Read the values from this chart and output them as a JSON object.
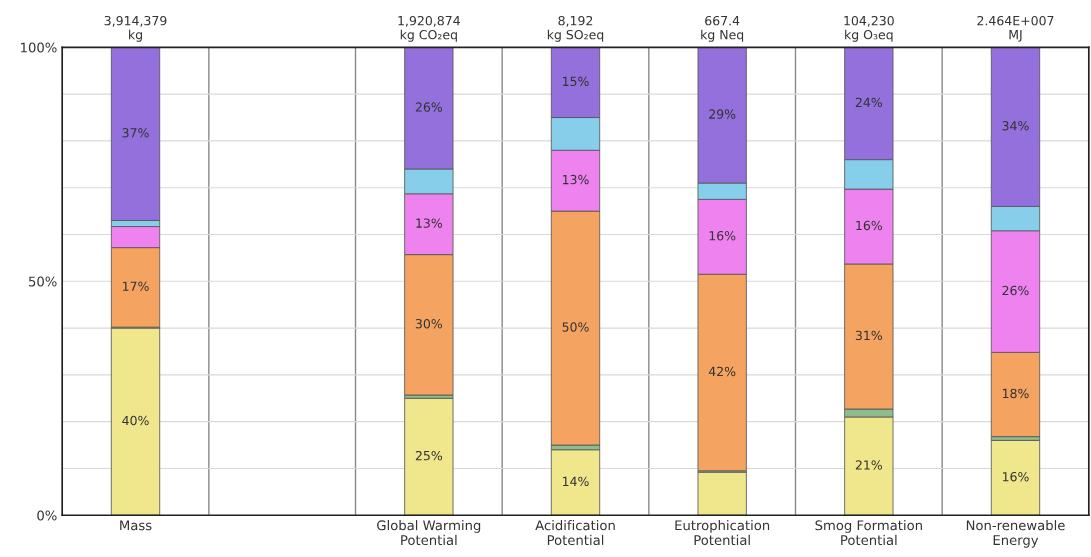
{
  "chart_data": {
    "type": "bar",
    "stacked": true,
    "categories": [
      "Mass",
      null,
      "Global Warming\nPotential",
      "Acidification\nPotential",
      "Eutrophication\nPotential",
      "Smog Formation\nPotential",
      "Non-renewable\nEnergy"
    ],
    "series": [
      {
        "color": "#f0e68c",
        "values": [
          40,
          null,
          25,
          14,
          9.2,
          21,
          16
        ],
        "value_labels": [
          "40%",
          null,
          "25%",
          "14%",
          null,
          "21%",
          "16%"
        ]
      },
      {
        "color": "#8fbc8f",
        "values": [
          0.2,
          null,
          0.7,
          1,
          0.3,
          1.7,
          0.8
        ],
        "value_labels": [
          null,
          null,
          null,
          null,
          null,
          null,
          null
        ]
      },
      {
        "color": "#f4a460",
        "values": [
          17,
          null,
          30,
          50,
          42,
          31,
          18
        ],
        "value_labels": [
          "17%",
          null,
          "30%",
          "50%",
          "42%",
          "31%",
          "18%"
        ]
      },
      {
        "color": "#ee82ee",
        "values": [
          4.5,
          null,
          13,
          13,
          16,
          16,
          26
        ],
        "value_labels": [
          null,
          null,
          "13%",
          "13%",
          "16%",
          "16%",
          "26%"
        ]
      },
      {
        "color": "#87ceeb",
        "values": [
          1.3,
          null,
          5.3,
          7,
          3.5,
          6.3,
          5.2
        ],
        "value_labels": [
          null,
          null,
          null,
          null,
          null,
          null,
          null
        ]
      },
      {
        "color": "#9370db",
        "values": [
          37,
          null,
          26,
          15,
          29,
          24,
          34
        ],
        "value_labels": [
          "37%",
          null,
          "26%",
          "15%",
          "29%",
          "24%",
          "34%"
        ]
      }
    ],
    "annotations": [
      {
        "text": "3,914,379\nkg",
        "x": "Mass",
        "y": 100
      },
      {
        "text": "1,920,874\nkg CO₂eq",
        "x": "Global Warming\nPotential",
        "y": 100
      },
      {
        "text": "8,192\nkg SO₂eq",
        "x": "Acidification\nPotential",
        "y": 100
      },
      {
        "text": "667.4\nkg Neq",
        "x": "Eutrophication\nPotential",
        "y": 100
      },
      {
        "text": "104,230\nkg O₃eq",
        "x": "Smog Formation\nPotential",
        "y": 100
      },
      {
        "text": "2.464E+007\nMJ",
        "x": "Non-renewable\nEnergy",
        "y": 100
      }
    ],
    "ylim": [
      0,
      100
    ],
    "yticks": [
      {
        "value": 0,
        "label": "0%"
      },
      {
        "value": 10,
        "label": null
      },
      {
        "value": 20,
        "label": null
      },
      {
        "value": 30,
        "label": null
      },
      {
        "value": 40,
        "label": null
      },
      {
        "value": 50,
        "label": "50%"
      },
      {
        "value": 60,
        "label": null
      },
      {
        "value": 70,
        "label": null
      },
      {
        "value": 80,
        "label": null
      },
      {
        "value": 90,
        "label": null
      },
      {
        "value": 100,
        "label": "100%"
      }
    ],
    "grid": true
  }
}
